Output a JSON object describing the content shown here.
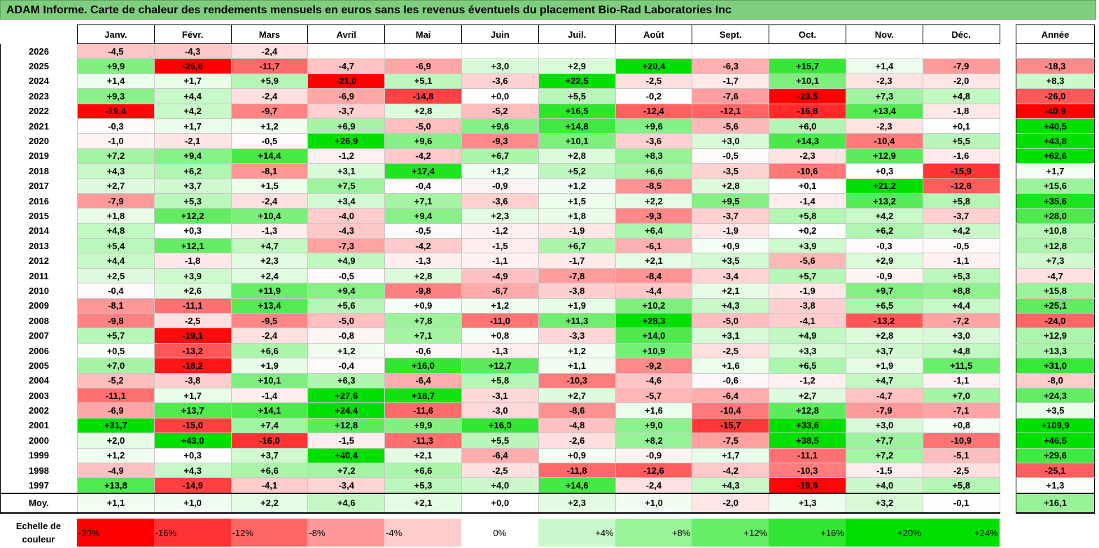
{
  "title": "ADAM Informe. Carte de chaleur des rendements mensuels en euros sans les revenus éventuels du placement Bio-Rad Laboratories Inc",
  "chart_data": {
    "type": "heatmap",
    "columns": [
      "Janv.",
      "Févr.",
      "Mars",
      "Avril",
      "Mai",
      "Juin",
      "Juil.",
      "Août",
      "Sept.",
      "Oct.",
      "Nov.",
      "Déc."
    ],
    "year_column": "Année",
    "rows": [
      {
        "year": "2026",
        "values": [
          "-4,5",
          "-4,3",
          "-2,4",
          "",
          "",
          "",
          "",
          "",
          "",
          "",
          "",
          ""
        ],
        "total": ""
      },
      {
        "year": "2025",
        "values": [
          "+9,9",
          "-26,6",
          "-11,7",
          "-4,7",
          "-6,9",
          "+3,0",
          "+2,9",
          "+20,4",
          "-6,3",
          "+15,7",
          "+1,4",
          "-7,9"
        ],
        "total": "-18,3"
      },
      {
        "year": "2024",
        "values": [
          "+1,4",
          "+1,7",
          "+5,9",
          "-21,0",
          "+5,1",
          "-3,6",
          "+22,5",
          "-2,5",
          "-1,7",
          "+10,1",
          "-2,3",
          "-2,0"
        ],
        "total": "+8,3"
      },
      {
        "year": "2023",
        "values": [
          "+9,3",
          "+4,4",
          "-2,4",
          "-6,9",
          "-14,8",
          "+0,0",
          "+5,5",
          "-0,2",
          "-7,6",
          "-23,5",
          "+7,3",
          "+4,8"
        ],
        "total": "-26,0"
      },
      {
        "year": "2022",
        "values": [
          "-19,4",
          "+4,2",
          "-9,7",
          "-3,7",
          "+2,8",
          "-5,2",
          "+16,5",
          "-12,4",
          "-12,1",
          "-16,8",
          "+13,4",
          "-1,8"
        ],
        "total": "-40,9"
      },
      {
        "year": "2021",
        "values": [
          "-0,3",
          "+1,7",
          "+1,2",
          "+6,9",
          "-5,0",
          "+9,6",
          "+14,8",
          "+9,6",
          "-5,6",
          "+6,0",
          "-2,3",
          "+0,1"
        ],
        "total": "+40,5"
      },
      {
        "year": "2020",
        "values": [
          "-1,0",
          "-2,1",
          "-0,5",
          "+26,9",
          "+9,6",
          "-9,3",
          "+10,1",
          "-3,6",
          "+3,0",
          "+14,3",
          "-10,4",
          "+5,5"
        ],
        "total": "+43,8"
      },
      {
        "year": "2019",
        "values": [
          "+7,2",
          "+9,4",
          "+14,4",
          "-1,2",
          "-4,2",
          "+6,7",
          "+2,8",
          "+8,3",
          "-0,5",
          "-2,3",
          "+12,9",
          "-1,6"
        ],
        "total": "+62,6"
      },
      {
        "year": "2018",
        "values": [
          "+4,3",
          "+6,2",
          "-8,1",
          "+3,1",
          "+17,4",
          "+1,2",
          "+5,2",
          "+6,6",
          "-3,5",
          "-10,6",
          "+0,3",
          "-15,9"
        ],
        "total": "+1,7"
      },
      {
        "year": "2017",
        "values": [
          "+2,7",
          "+3,7",
          "+1,5",
          "+7,5",
          "-0,4",
          "-0,9",
          "+1,2",
          "-8,5",
          "+2,8",
          "+0,1",
          "+21,2",
          "-12,8"
        ],
        "total": "+15,6"
      },
      {
        "year": "2016",
        "values": [
          "-7,9",
          "+5,3",
          "-2,4",
          "+3,4",
          "+7,1",
          "-3,6",
          "+1,5",
          "+2,2",
          "+9,5",
          "-1,4",
          "+13,2",
          "+5,8"
        ],
        "total": "+35,6"
      },
      {
        "year": "2015",
        "values": [
          "+1,8",
          "+12,2",
          "+10,4",
          "-4,0",
          "+9,4",
          "+2,3",
          "+1,8",
          "-9,3",
          "-3,7",
          "+5,8",
          "+4,2",
          "-3,7"
        ],
        "total": "+28,0"
      },
      {
        "year": "2014",
        "values": [
          "+4,8",
          "+0,3",
          "-1,3",
          "-4,3",
          "-0,5",
          "-1,2",
          "-1,9",
          "+6,4",
          "-1,9",
          "+0,2",
          "+6,2",
          "+4,2"
        ],
        "total": "+10,8"
      },
      {
        "year": "2013",
        "values": [
          "+5,4",
          "+12,1",
          "+4,7",
          "-7,3",
          "-4,2",
          "-1,5",
          "+6,7",
          "-6,1",
          "+0,9",
          "+3,9",
          "-0,3",
          "-0,5"
        ],
        "total": "+12,8"
      },
      {
        "year": "2012",
        "values": [
          "+4,4",
          "-1,8",
          "+2,3",
          "+4,9",
          "-1,3",
          "-1,1",
          "-1,7",
          "+2,1",
          "+3,5",
          "-5,6",
          "+2,9",
          "-1,1"
        ],
        "total": "+7,3"
      },
      {
        "year": "2011",
        "values": [
          "+2,5",
          "+3,9",
          "+2,4",
          "-0,5",
          "+2,8",
          "-4,9",
          "-7,8",
          "-8,4",
          "-3,4",
          "+5,7",
          "-0,9",
          "+5,3"
        ],
        "total": "-4,7"
      },
      {
        "year": "2010",
        "values": [
          "-0,4",
          "+2,6",
          "+11,9",
          "+9,4",
          "-9,8",
          "-6,7",
          "-3,8",
          "-4,4",
          "+2,1",
          "-1,9",
          "+9,7",
          "+8,8"
        ],
        "total": "+15,8"
      },
      {
        "year": "2009",
        "values": [
          "-8,1",
          "-11,1",
          "+13,4",
          "+5,6",
          "+0,9",
          "+1,2",
          "+1,9",
          "+10,2",
          "+4,3",
          "-3,8",
          "+6,5",
          "+4,4"
        ],
        "total": "+25,1"
      },
      {
        "year": "2008",
        "values": [
          "-9,8",
          "-2,5",
          "-9,5",
          "-5,0",
          "+7,8",
          "-11,0",
          "+11,3",
          "+28,3",
          "-5,0",
          "-4,1",
          "-13,2",
          "-7,2"
        ],
        "total": "-24,0"
      },
      {
        "year": "2007",
        "values": [
          "+5,7",
          "-19,1",
          "-2,4",
          "-0,8",
          "+7,1",
          "+0,8",
          "-3,3",
          "+14,0",
          "+3,1",
          "+4,9",
          "+2,8",
          "+3,0"
        ],
        "total": "+12,9"
      },
      {
        "year": "2006",
        "values": [
          "+0,5",
          "-13,2",
          "+6,6",
          "+1,2",
          "-0,6",
          "-1,3",
          "+1,2",
          "+10,9",
          "-2,5",
          "+3,3",
          "+3,7",
          "+4,8"
        ],
        "total": "+13,3"
      },
      {
        "year": "2005",
        "values": [
          "+7,0",
          "-18,2",
          "+1,9",
          "-0,4",
          "+16,0",
          "+12,7",
          "+1,1",
          "-9,2",
          "+1,6",
          "+6,5",
          "+1,9",
          "+11,5"
        ],
        "total": "+31,0"
      },
      {
        "year": "2004",
        "values": [
          "-5,2",
          "-3,8",
          "+10,1",
          "+6,3",
          "-6,4",
          "+5,8",
          "-10,3",
          "-4,6",
          "-0,6",
          "-1,2",
          "+4,7",
          "-1,1"
        ],
        "total": "-8,0"
      },
      {
        "year": "2003",
        "values": [
          "-11,1",
          "+1,7",
          "-1,4",
          "+27,6",
          "+18,7",
          "-3,1",
          "+2,7",
          "-5,7",
          "-6,4",
          "+2,7",
          "-4,7",
          "+7,0"
        ],
        "total": "+24,3"
      },
      {
        "year": "2002",
        "values": [
          "-6,9",
          "+13,7",
          "+14,1",
          "+24,4",
          "-11,6",
          "-3,0",
          "-8,6",
          "+1,6",
          "-10,4",
          "+12,8",
          "-7,9",
          "-7,1"
        ],
        "total": "+3,5"
      },
      {
        "year": "2001",
        "values": [
          "+31,7",
          "-15,0",
          "+7,4",
          "+12,8",
          "+9,9",
          "+16,0",
          "-4,8",
          "+9,0",
          "-15,7",
          "+33,6",
          "+3,0",
          "+0,8"
        ],
        "total": "+109,9"
      },
      {
        "year": "2000",
        "values": [
          "+2,0",
          "+43,0",
          "-16,0",
          "-1,5",
          "-11,3",
          "+5,5",
          "-2,6",
          "+8,2",
          "-7,5",
          "+38,5",
          "+7,7",
          "-10,9"
        ],
        "total": "+46,5"
      },
      {
        "year": "1999",
        "values": [
          "+1,2",
          "+0,3",
          "+3,7",
          "+40,4",
          "+2,1",
          "-6,4",
          "+0,9",
          "-0,9",
          "+1,7",
          "-11,1",
          "+7,2",
          "-5,1"
        ],
        "total": "+29,6"
      },
      {
        "year": "1998",
        "values": [
          "-4,9",
          "+4,3",
          "+6,6",
          "+7,2",
          "+6,6",
          "-2,5",
          "-11,8",
          "-12,6",
          "-4,2",
          "-10,3",
          "-1,5",
          "-2,5"
        ],
        "total": "-25,1"
      },
      {
        "year": "1997",
        "values": [
          "+13,8",
          "-14,9",
          "-4,1",
          "-3,4",
          "+5,3",
          "+4,0",
          "+14,6",
          "-2,4",
          "+4,3",
          "-19,6",
          "+4,0",
          "+5,8"
        ],
        "total": "+1,3"
      }
    ],
    "average": {
      "label": "Moy.",
      "values": [
        "+1,1",
        "+1,0",
        "+2,2",
        "+4,6",
        "+2,1",
        "+0,0",
        "+2,3",
        "+1,0",
        "-2,0",
        "+1,3",
        "+3,2",
        "-0,1"
      ],
      "total": "+16,1"
    },
    "scale": {
      "label_line1": "Echelle de",
      "label_line2": "couleur",
      "steps": [
        "-20%",
        "-16%",
        "-12%",
        "-8%",
        "-4%",
        "0%",
        "+4%",
        "+8%",
        "+12%",
        "+16%",
        "+20%",
        "+24%"
      ]
    },
    "colors": {
      "negative": "#ff0000",
      "neutral": "#ffffff",
      "positive": "#00e000"
    }
  }
}
